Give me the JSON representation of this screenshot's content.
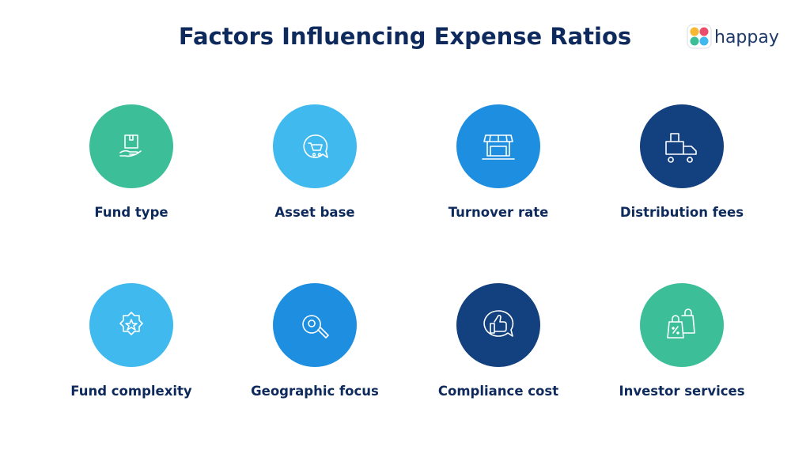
{
  "header": {
    "title": "Factors Influencing Expense Ratios",
    "logo": "happay"
  },
  "items": [
    {
      "label": "Fund type",
      "color": "#3cbf98"
    },
    {
      "label": "Asset base",
      "color": "#3fb9ee"
    },
    {
      "label": "Turnover rate",
      "color": "#1e8fe0"
    },
    {
      "label": "Distribution fees",
      "color": "#13407f"
    },
    {
      "label": "Fund complexity",
      "color": "#3fb9ee"
    },
    {
      "label": "Geographic focus",
      "color": "#1e8fe0"
    },
    {
      "label": "Compliance cost",
      "color": "#13407f"
    },
    {
      "label": "Investor services",
      "color": "#3cbf98"
    }
  ]
}
